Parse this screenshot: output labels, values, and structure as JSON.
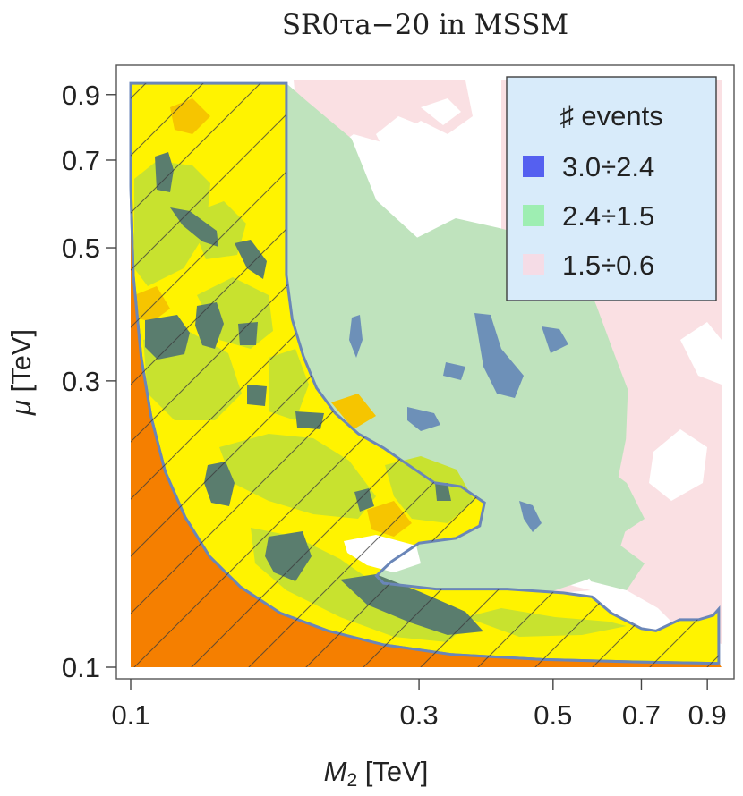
{
  "chart_data": {
    "type": "heatmap",
    "title": "SR0τa−20 in MSSM",
    "xlabel": {
      "var": "M",
      "sub": "2",
      "unit": " [TeV]"
    },
    "ylabel": {
      "var": "μ",
      "unit": " [TeV]"
    },
    "x_scale": "log",
    "y_scale": "log",
    "xlim": [
      0.1,
      0.95
    ],
    "ylim": [
      0.1,
      0.95
    ],
    "x_ticks": [
      {
        "value": 0.1,
        "label": "0.1"
      },
      {
        "value": 0.3,
        "label": "0.3"
      },
      {
        "value": 0.5,
        "label": "0.5"
      },
      {
        "value": 0.7,
        "label": "0.7"
      },
      {
        "value": 0.9,
        "label": "0.9"
      }
    ],
    "y_ticks": [
      {
        "value": 0.1,
        "label": "0.1"
      },
      {
        "value": 0.3,
        "label": "0.3"
      },
      {
        "value": 0.5,
        "label": "0.5"
      },
      {
        "value": 0.7,
        "label": "0.7"
      },
      {
        "value": 0.9,
        "label": "0.9"
      }
    ],
    "legend": {
      "title": "♯ events",
      "placement": "top-right",
      "entries": [
        {
          "label": "3.0÷2.4",
          "color": "#5560f0"
        },
        {
          "label": "2.4÷1.5",
          "color": "#9eeeb2"
        },
        {
          "label": "1.5÷0.6",
          "color": "#f5dce6"
        }
      ]
    },
    "region_colors": {
      "excluded": "#f57f00",
      "allowed_yellow": "#fff300",
      "allowed_olive": "#c8e22f",
      "allowed_orange": "#f6c500",
      "dark_blobs": "#5a7d6e",
      "green": "#bfe3bd",
      "blue": "#6d90b8",
      "pink": "#fae0e3",
      "boundary": "#6a86b8",
      "legend_bg": "#d8ebfa"
    },
    "regions": {
      "excluded_boundary": [
        [
          0.1,
          0.64
        ],
        [
          0.101,
          0.45
        ],
        [
          0.104,
          0.33
        ],
        [
          0.108,
          0.262
        ],
        [
          0.114,
          0.212
        ],
        [
          0.123,
          0.178
        ],
        [
          0.135,
          0.153
        ],
        [
          0.152,
          0.136
        ],
        [
          0.177,
          0.123
        ],
        [
          0.212,
          0.115
        ],
        [
          0.262,
          0.109
        ],
        [
          0.34,
          0.105
        ],
        [
          0.48,
          0.103
        ],
        [
          0.7,
          0.102
        ],
        [
          0.94,
          0.1015
        ]
      ],
      "allowed_region": [
        [
          0.1,
          0.94
        ],
        [
          0.181,
          0.94
        ],
        [
          0.181,
          0.45
        ],
        [
          0.185,
          0.38
        ],
        [
          0.193,
          0.33
        ],
        [
          0.203,
          0.292
        ],
        [
          0.218,
          0.265
        ],
        [
          0.238,
          0.245
        ],
        [
          0.262,
          0.232
        ],
        [
          0.283,
          0.22
        ],
        [
          0.318,
          0.203
        ],
        [
          0.352,
          0.2
        ],
        [
          0.385,
          0.188
        ],
        [
          0.378,
          0.172
        ],
        [
          0.345,
          0.164
        ],
        [
          0.3,
          0.161
        ],
        [
          0.27,
          0.15
        ],
        [
          0.255,
          0.142
        ],
        [
          0.262,
          0.138
        ],
        [
          0.32,
          0.135
        ],
        [
          0.42,
          0.135
        ],
        [
          0.52,
          0.133
        ],
        [
          0.58,
          0.131
        ],
        [
          0.625,
          0.123
        ],
        [
          0.7,
          0.116
        ],
        [
          0.74,
          0.115
        ],
        [
          0.81,
          0.12
        ],
        [
          0.87,
          0.12
        ],
        [
          0.92,
          0.122
        ],
        [
          0.94,
          0.125
        ],
        [
          0.94,
          0.1015
        ],
        [
          0.7,
          0.102
        ],
        [
          0.48,
          0.103
        ],
        [
          0.34,
          0.105
        ],
        [
          0.262,
          0.109
        ],
        [
          0.212,
          0.115
        ],
        [
          0.177,
          0.123
        ],
        [
          0.152,
          0.136
        ],
        [
          0.135,
          0.153
        ],
        [
          0.123,
          0.178
        ],
        [
          0.114,
          0.212
        ],
        [
          0.108,
          0.262
        ],
        [
          0.104,
          0.33
        ],
        [
          0.101,
          0.45
        ],
        [
          0.1,
          0.64
        ]
      ],
      "green_region": [
        [
          0.181,
          0.94
        ],
        [
          0.195,
          0.88
        ],
        [
          0.232,
          0.76
        ],
        [
          0.255,
          0.6
        ],
        [
          0.298,
          0.52
        ],
        [
          0.345,
          0.56
        ],
        [
          0.405,
          0.54
        ],
        [
          0.47,
          0.52
        ],
        [
          0.548,
          0.48
        ],
        [
          0.59,
          0.4
        ],
        [
          0.625,
          0.342
        ],
        [
          0.665,
          0.29
        ],
        [
          0.66,
          0.24
        ],
        [
          0.63,
          0.19
        ],
        [
          0.66,
          0.17
        ],
        [
          0.635,
          0.15
        ],
        [
          0.57,
          0.14
        ],
        [
          0.5,
          0.134
        ],
        [
          0.42,
          0.135
        ],
        [
          0.32,
          0.135
        ],
        [
          0.262,
          0.138
        ],
        [
          0.255,
          0.142
        ],
        [
          0.27,
          0.15
        ],
        [
          0.3,
          0.161
        ],
        [
          0.345,
          0.164
        ],
        [
          0.378,
          0.172
        ],
        [
          0.385,
          0.188
        ],
        [
          0.352,
          0.2
        ],
        [
          0.318,
          0.203
        ],
        [
          0.283,
          0.22
        ],
        [
          0.262,
          0.232
        ],
        [
          0.238,
          0.245
        ],
        [
          0.218,
          0.265
        ],
        [
          0.203,
          0.292
        ],
        [
          0.193,
          0.33
        ],
        [
          0.185,
          0.38
        ],
        [
          0.181,
          0.45
        ]
      ]
    }
  }
}
